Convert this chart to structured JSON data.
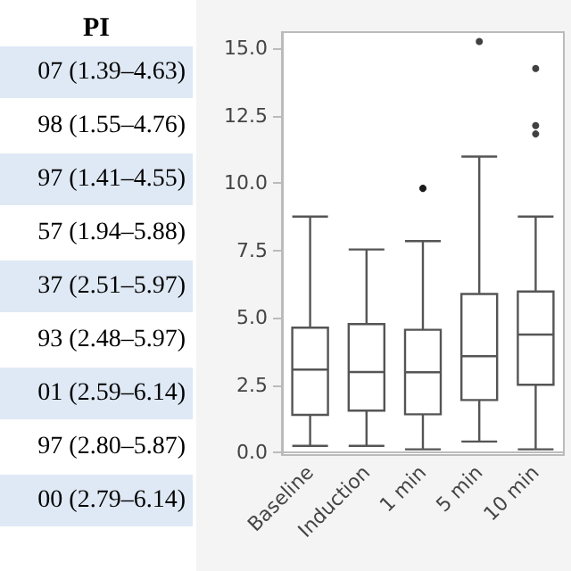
{
  "chart_data": [
    {
      "type": "other",
      "title": "PI",
      "annotations": [
        "07 (1.39–4.63)",
        "98 (1.55–4.76)",
        "97 (1.41–4.55)",
        "57 (1.94–5.88)",
        "37 (2.51–5.97)",
        "93 (2.48–5.97)",
        "01 (2.59–6.14)",
        "97 (2.80–5.87)",
        "00 (2.79–6.14)"
      ]
    },
    {
      "type": "box",
      "categories": [
        "Baseline",
        "Induction",
        "1 min",
        "5 min",
        "10 min"
      ],
      "color": "#555555",
      "boxes": [
        {
          "low": 0.24,
          "q1": 1.39,
          "median": 3.07,
          "q3": 4.63,
          "high": 8.75
        },
        {
          "low": 0.24,
          "q1": 1.55,
          "median": 2.98,
          "q3": 4.76,
          "high": 7.53
        },
        {
          "low": 0.11,
          "q1": 1.41,
          "median": 2.97,
          "q3": 4.55,
          "high": 7.84,
          "outliers": [
            9.8,
            9.8
          ]
        },
        {
          "low": 0.4,
          "q1": 1.94,
          "median": 3.57,
          "q3": 5.88,
          "high": 10.98,
          "outliers": [
            15.25
          ]
        },
        {
          "low": 0.11,
          "q1": 2.51,
          "median": 4.37,
          "q3": 5.97,
          "high": 8.75,
          "outliers": [
            14.25,
            12.13,
            11.82
          ]
        }
      ],
      "ylim": [
        -0.1,
        15.6
      ],
      "yticks": [
        {
          "value": 0,
          "label": "0.0"
        },
        {
          "value": 2.5,
          "label": "2.5"
        },
        {
          "value": 5,
          "label": "5.0"
        },
        {
          "value": 7.5,
          "label": "7.5"
        },
        {
          "value": 10,
          "label": "10.0"
        },
        {
          "value": 12.5,
          "label": "12.5"
        },
        {
          "value": 15,
          "label": "15.0"
        }
      ],
      "grid": false
    }
  ]
}
